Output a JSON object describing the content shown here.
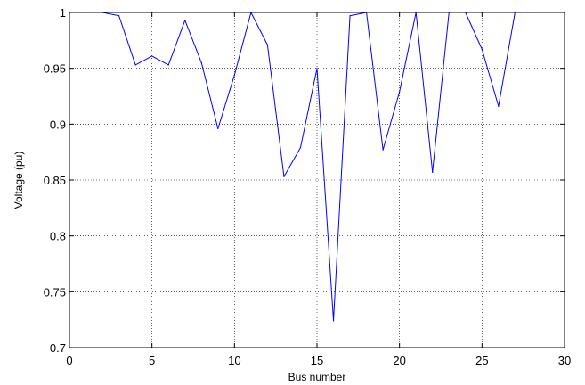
{
  "chart_data": {
    "type": "line",
    "title": "",
    "xlabel": "Bus number",
    "ylabel": "Voltage (pu)",
    "xlim": [
      0,
      30
    ],
    "ylim": [
      0.7,
      1
    ],
    "xticks": [
      0,
      5,
      10,
      15,
      20,
      25,
      30
    ],
    "yticks": [
      0.7,
      0.75,
      0.8,
      0.85,
      0.9,
      0.95,
      1
    ],
    "xtick_labels": [
      "0",
      "5",
      "10",
      "15",
      "20",
      "25",
      "30"
    ],
    "ytick_labels": [
      "0.7",
      "0.75",
      "0.8",
      "0.85",
      "0.9",
      "0.95",
      "1"
    ],
    "grid": true,
    "legend": "none",
    "series": [
      {
        "color": "#0000ff",
        "x": [
          1,
          2,
          3,
          4,
          5,
          6,
          7,
          8,
          9,
          10,
          11,
          12,
          13,
          14,
          15,
          16,
          17,
          18,
          19,
          20,
          21,
          22,
          23,
          24,
          25,
          26,
          27,
          28
        ],
        "y": [
          1.0,
          1.0,
          0.997,
          0.953,
          0.961,
          0.953,
          0.993,
          0.955,
          0.896,
          0.944,
          1.0,
          0.971,
          0.853,
          0.879,
          0.95,
          0.724,
          0.997,
          1.0,
          0.877,
          0.929,
          1.0,
          0.857,
          1.0,
          1.0,
          0.967,
          0.916,
          1.0,
          1.0
        ]
      }
    ]
  }
}
